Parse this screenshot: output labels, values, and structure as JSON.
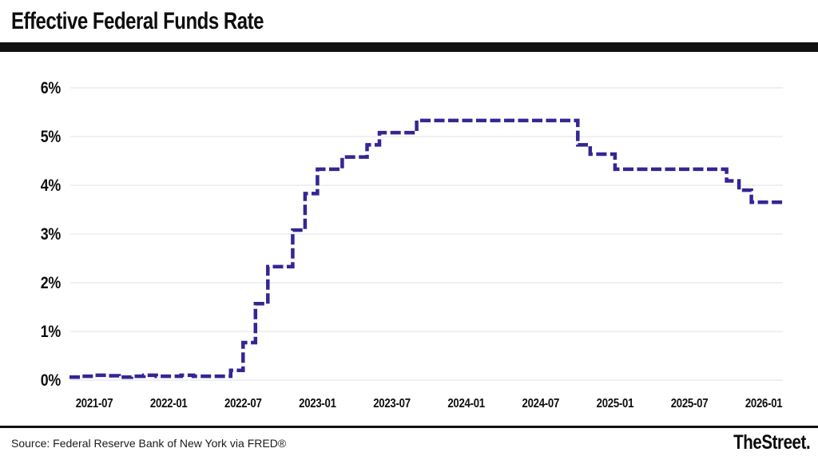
{
  "header": {
    "title": "Effective Federal Funds Rate"
  },
  "footer": {
    "source": "Source: Federal Reserve Bank of New York via FRED®",
    "brand": "TheStreet."
  },
  "colors": {
    "line": "#332694",
    "grid": "#e7e7e9",
    "text": "#0e0e0e",
    "rule": "#111111",
    "background": "#ffffff"
  },
  "chart_data": {
    "type": "line",
    "step": true,
    "line_style": "dashed",
    "title": "Effective Federal Funds Rate",
    "xlabel": "",
    "ylabel": "",
    "unit": "%",
    "ylim": [
      0,
      6
    ],
    "grid": "horizontal-only",
    "legend": "none",
    "yticks": [
      "0%",
      "1%",
      "2%",
      "3%",
      "4%",
      "5%",
      "6%"
    ],
    "xticks": [
      "2021-07",
      "2022-01",
      "2022-07",
      "2023-01",
      "2023-07",
      "2024-01",
      "2024-07",
      "2025-01",
      "2025-07",
      "2026-01"
    ],
    "months": [
      "2021-05",
      "2021-06",
      "2021-07",
      "2021-08",
      "2021-09",
      "2021-10",
      "2021-11",
      "2021-12",
      "2022-01",
      "2022-02",
      "2022-03",
      "2022-04",
      "2022-05",
      "2022-06",
      "2022-07",
      "2022-08",
      "2022-09",
      "2022-10",
      "2022-11",
      "2022-12",
      "2023-01",
      "2023-02",
      "2023-03",
      "2023-04",
      "2023-05",
      "2023-06",
      "2023-07",
      "2023-08",
      "2023-09",
      "2023-10",
      "2023-11",
      "2023-12",
      "2024-01",
      "2024-02",
      "2024-03",
      "2024-04",
      "2024-05",
      "2024-06",
      "2024-07",
      "2024-08",
      "2024-09",
      "2024-10",
      "2024-11",
      "2024-12",
      "2025-01",
      "2025-02",
      "2025-03",
      "2025-04",
      "2025-05",
      "2025-06",
      "2025-07",
      "2025-08",
      "2025-09",
      "2025-10",
      "2025-11",
      "2025-12",
      "2026-01"
    ],
    "values": [
      0.06,
      0.08,
      0.1,
      0.09,
      0.06,
      0.08,
      0.1,
      0.08,
      0.08,
      0.1,
      0.08,
      0.08,
      0.08,
      0.2,
      0.77,
      1.57,
      2.33,
      2.33,
      3.08,
      3.83,
      4.33,
      4.33,
      4.58,
      4.58,
      4.83,
      5.08,
      5.08,
      5.08,
      5.33,
      5.33,
      5.33,
      5.33,
      5.33,
      5.33,
      5.33,
      5.33,
      5.33,
      5.33,
      5.33,
      5.33,
      5.33,
      4.83,
      4.64,
      4.64,
      4.33,
      4.33,
      4.33,
      4.33,
      4.33,
      4.33,
      4.33,
      4.33,
      4.33,
      4.09,
      3.9,
      3.65,
      3.65
    ]
  }
}
